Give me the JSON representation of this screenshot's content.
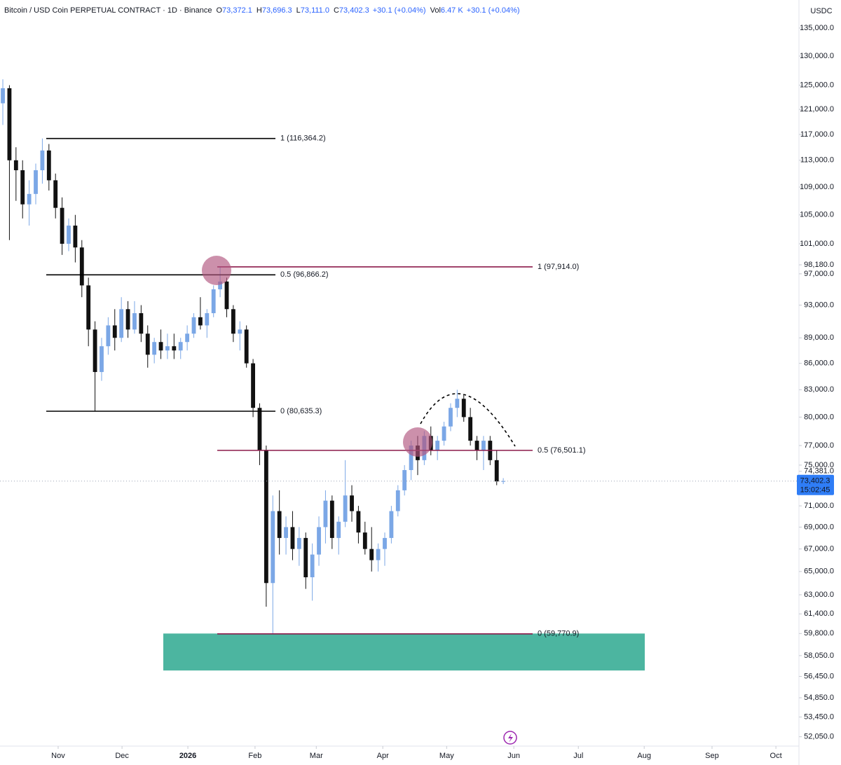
{
  "chart_data": {
    "type": "candlestick",
    "title": "Bitcoin / USD Coin PERPETUAL CONTRACT · 1D · Binance",
    "ohlc_header": [
      {
        "key": "O",
        "text": "73,372.1"
      },
      {
        "key": "H",
        "text": "73,696.3"
      },
      {
        "key": "L",
        "text": "73,111.0"
      },
      {
        "key": "C",
        "text": "73,402.3"
      }
    ],
    "change": "+30.1 (+0.04%)",
    "volume_key": "Vol",
    "volume": "6.47 K",
    "volume_change": "+30.1 (+0.04%)",
    "currency": "USDC",
    "log_scale": true,
    "grid": false,
    "up_color": "#7ba7e6",
    "down_color": "#111111",
    "candles": [
      [
        122000,
        126000,
        118500,
        124500
      ],
      [
        124500,
        125000,
        101500,
        113000
      ],
      [
        113000,
        115000,
        107000,
        111500
      ],
      [
        111500,
        113000,
        104500,
        106500
      ],
      [
        106500,
        110000,
        103500,
        108000
      ],
      [
        108000,
        112500,
        106500,
        111500
      ],
      [
        111500,
        116364,
        109500,
        114500
      ],
      [
        114500,
        115500,
        108500,
        110000
      ],
      [
        110000,
        111000,
        104500,
        106000
      ],
      [
        106000,
        107500,
        99500,
        101000
      ],
      [
        101000,
        104500,
        100000,
        103500
      ],
      [
        103500,
        105000,
        98500,
        100500
      ],
      [
        100500,
        101500,
        94000,
        95500
      ],
      [
        95500,
        96500,
        88000,
        90000
      ],
      [
        90000,
        91000,
        80635,
        85000
      ],
      [
        85000,
        89000,
        84000,
        88000
      ],
      [
        88000,
        91500,
        87000,
        90500
      ],
      [
        90500,
        92500,
        87500,
        89000
      ],
      [
        89000,
        94000,
        88500,
        92500
      ],
      [
        92500,
        93500,
        89000,
        90000
      ],
      [
        90000,
        93500,
        89500,
        92000
      ],
      [
        92000,
        93000,
        88500,
        89500
      ],
      [
        89500,
        90500,
        85500,
        87000
      ],
      [
        87000,
        89000,
        86000,
        88500
      ],
      [
        88500,
        90000,
        86500,
        87500
      ],
      [
        87500,
        89500,
        86500,
        88000
      ],
      [
        88000,
        89500,
        86500,
        87500
      ],
      [
        87500,
        89000,
        86500,
        88500
      ],
      [
        88500,
        90500,
        87500,
        89500
      ],
      [
        89500,
        92000,
        89000,
        91500
      ],
      [
        91500,
        94000,
        90000,
        90500
      ],
      [
        90500,
        92500,
        89000,
        92000
      ],
      [
        92000,
        95500,
        91500,
        95000
      ],
      [
        95000,
        97914,
        94000,
        96000
      ],
      [
        96000,
        96500,
        91500,
        92500
      ],
      [
        92500,
        93000,
        88500,
        89500
      ],
      [
        89500,
        91000,
        87500,
        90000
      ],
      [
        90000,
        90500,
        85500,
        86000
      ],
      [
        86000,
        86500,
        80000,
        81000
      ],
      [
        81000,
        81500,
        75000,
        76500
      ],
      [
        76500,
        77000,
        62000,
        64000
      ],
      [
        64000,
        72000,
        59770.9,
        70500
      ],
      [
        70500,
        72500,
        66500,
        68000
      ],
      [
        68000,
        70000,
        66500,
        69000
      ],
      [
        69000,
        70500,
        66000,
        67000
      ],
      [
        67000,
        69000,
        65500,
        68000
      ],
      [
        68000,
        68500,
        63500,
        64500
      ],
      [
        64500,
        67500,
        62500,
        66500
      ],
      [
        66500,
        70000,
        65500,
        69000
      ],
      [
        69000,
        72500,
        67500,
        71500
      ],
      [
        71500,
        72000,
        67000,
        68000
      ],
      [
        68000,
        70000,
        66500,
        69500
      ],
      [
        69500,
        75500,
        69000,
        72000
      ],
      [
        72000,
        73000,
        69500,
        70500
      ],
      [
        70500,
        71000,
        67500,
        68500
      ],
      [
        68500,
        69500,
        66500,
        67000
      ],
      [
        67000,
        69000,
        65000,
        66000
      ],
      [
        66000,
        67500,
        65000,
        67000
      ],
      [
        67000,
        68500,
        65500,
        68000
      ],
      [
        68000,
        71000,
        67500,
        70500
      ],
      [
        70500,
        73000,
        70000,
        72500
      ],
      [
        72500,
        75000,
        72000,
        74500
      ],
      [
        74500,
        77500,
        73500,
        77000
      ],
      [
        77000,
        78000,
        74000,
        75500
      ],
      [
        75500,
        78500,
        75000,
        78000
      ],
      [
        78000,
        79000,
        76000,
        76500
      ],
      [
        76500,
        78000,
        75500,
        77500
      ],
      [
        77500,
        79500,
        77000,
        79000
      ],
      [
        79000,
        81500,
        78500,
        81000
      ],
      [
        81000,
        83000,
        80000,
        82000
      ],
      [
        82000,
        82500,
        79500,
        80000
      ],
      [
        80000,
        81000,
        77000,
        77500
      ],
      [
        77500,
        78000,
        75500,
        76500
      ],
      [
        76500,
        78000,
        74500,
        77500
      ],
      [
        77500,
        78000,
        75000,
        75500
      ],
      [
        75500,
        76500,
        73000,
        73372.1
      ],
      [
        73372.1,
        73696.3,
        73111,
        73402.3
      ]
    ],
    "xlim": [
      -0.43,
      120.9
    ],
    "xticks": [
      {
        "value": 8.4,
        "label": "Nov"
      },
      {
        "value": 18.1,
        "label": "Dec"
      },
      {
        "value": 28.1,
        "label": "2026"
      },
      {
        "value": 38.3,
        "label": "Feb"
      },
      {
        "value": 47.6,
        "label": "Mar"
      },
      {
        "value": 57.7,
        "label": "Apr"
      },
      {
        "value": 67.4,
        "label": "May"
      },
      {
        "value": 77.6,
        "label": "Jun"
      },
      {
        "value": 87.4,
        "label": "Jul"
      },
      {
        "value": 97.4,
        "label": "Aug"
      },
      {
        "value": 107.7,
        "label": "Sep"
      },
      {
        "value": 117.4,
        "label": "Oct"
      }
    ],
    "ylim": [
      51400,
      140180
    ],
    "yticks": [
      {
        "value": 135000,
        "label": "135,000.0"
      },
      {
        "value": 130000,
        "label": "130,000.0"
      },
      {
        "value": 125000,
        "label": "125,000.0"
      },
      {
        "value": 121000,
        "label": "121,000.0"
      },
      {
        "value": 117000,
        "label": "117,000.0"
      },
      {
        "value": 113000,
        "label": "113,000.0"
      },
      {
        "value": 109000,
        "label": "109,000.0"
      },
      {
        "value": 105000,
        "label": "105,000.0"
      },
      {
        "value": 101000,
        "label": "101,000.0"
      },
      {
        "value": 98180,
        "label": "98,180.0"
      },
      {
        "value": 97000,
        "label": "97,000.0"
      },
      {
        "value": 93000,
        "label": "93,000.0"
      },
      {
        "value": 89000,
        "label": "89,000.0"
      },
      {
        "value": 86000,
        "label": "86,000.0"
      },
      {
        "value": 83000,
        "label": "83,000.0"
      },
      {
        "value": 80000,
        "label": "80,000.0"
      },
      {
        "value": 77000,
        "label": "77,000.0"
      },
      {
        "value": 75000,
        "label": "75,000.0"
      },
      {
        "value": 74381,
        "label": "74,381.0"
      },
      {
        "value": 71000,
        "label": "71,000.0"
      },
      {
        "value": 69000,
        "label": "69,000.0"
      },
      {
        "value": 67000,
        "label": "67,000.0"
      },
      {
        "value": 65000,
        "label": "65,000.0"
      },
      {
        "value": 63000,
        "label": "63,000.0"
      },
      {
        "value": 61400,
        "label": "61,400.0"
      },
      {
        "value": 59800,
        "label": "59,800.0"
      },
      {
        "value": 58050,
        "label": "58,050.0"
      },
      {
        "value": 56450,
        "label": "56,450.0"
      },
      {
        "value": 54850,
        "label": "54,850.0"
      },
      {
        "value": 53450,
        "label": "53,450.0"
      },
      {
        "value": 52050,
        "label": "52,050.0"
      }
    ],
    "last_price": {
      "value": 73402.3,
      "label": "73,402.3"
    },
    "countdown": "15:02:45",
    "fib_levels": [
      {
        "value": 116364.2,
        "label": "1 (116,364.2)",
        "color": "#000000"
      },
      {
        "value": 96866.2,
        "label": "0.5 (96,866.2)",
        "color": "#000000"
      },
      {
        "value": 80635.3,
        "label": "0 (80,635.3)",
        "color": "#000000"
      },
      {
        "value": 97914.0,
        "label": "1 (97,914.0)",
        "color": "#8b1a4a"
      },
      {
        "value": 76501.1,
        "label": "0.5 (76,501.1)",
        "color": "#8b1a4a"
      },
      {
        "value": 59770.9,
        "label": "0 (59,770.9)",
        "color": "#8b1a4a"
      }
    ],
    "support_zone": {
      "range": [
        56900,
        59800
      ],
      "color": "#4cb5a0"
    }
  }
}
